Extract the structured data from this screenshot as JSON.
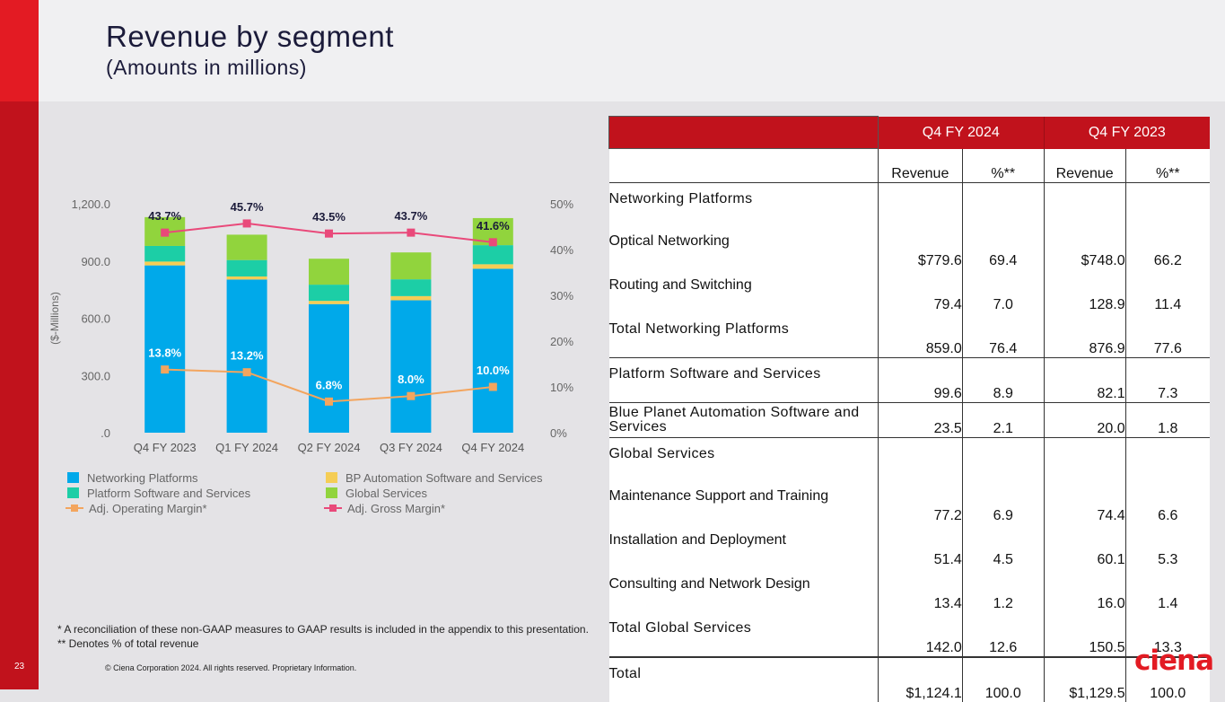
{
  "page": {
    "title": "Revenue by segment",
    "subtitle": "(Amounts in millions)",
    "page_number": "23",
    "footnote_1": "* A reconciliation of these non-GAAP measures to GAAP results is included in the appendix to this presentation.",
    "footnote_2": "** Denotes % of total revenue",
    "copyright": "© Ciena Corporation 2024. All rights reserved. Proprietary Information.",
    "logo_text": "ciena",
    "accent_color": "#e31b23",
    "sidebar_color": "#c1121c"
  },
  "chart_data": {
    "type": "bar",
    "stacked": true,
    "categories": [
      "Q4 FY 2023",
      "Q1 FY 2024",
      "Q2 FY 2024",
      "Q3 FY 2024",
      "Q4 FY 2024"
    ],
    "ylabel": "($-Millions)",
    "ylim": [
      0,
      1200
    ],
    "yticks": [
      ".0",
      "300.0",
      "600.0",
      "900.0",
      "1,200.0"
    ],
    "y2lim": [
      0,
      50
    ],
    "y2ticks": [
      "0%",
      "10%",
      "20%",
      "30%",
      "40%",
      "50%"
    ],
    "series": [
      {
        "name": "Networking Platforms",
        "color": "#00a9ea",
        "values": [
          877,
          803,
          674,
          694,
          859
        ]
      },
      {
        "name": "BP Automation Software and Services",
        "color": "#f5cd55",
        "values": [
          20,
          16,
          17,
          22,
          24
        ]
      },
      {
        "name": "Platform Software and Services",
        "color": "#1ccea6",
        "values": [
          82,
          86,
          85,
          88,
          100
        ]
      },
      {
        "name": "Global Services",
        "color": "#91d43d",
        "values": [
          151,
          133,
          136,
          141,
          142
        ]
      }
    ],
    "lines": [
      {
        "name": "Adj. Gross Margin*",
        "color": "#e9497a",
        "values": [
          43.7,
          45.7,
          43.5,
          43.7,
          41.6
        ],
        "labels": [
          "43.7%",
          "45.7%",
          "43.5%",
          "43.7%",
          "41.6%"
        ]
      },
      {
        "name": "Adj. Operating Margin*",
        "color": "#f3a55e",
        "values": [
          13.8,
          13.2,
          6.8,
          8.0,
          10.0
        ],
        "labels": [
          "13.8%",
          "13.2%",
          "6.8%",
          "8.0%",
          "10.0%"
        ]
      }
    ],
    "legend": [
      "Networking Platforms",
      "BP Automation Software and Services",
      "Platform Software and Services",
      "Global Services",
      "Adj. Operating Margin*",
      "Adj. Gross Margin*"
    ],
    "legend_position": "bottom"
  },
  "table": {
    "col_groups": [
      "Q4 FY 2024",
      "Q4 FY 2023"
    ],
    "col_headers": [
      "Revenue",
      "%**",
      "Revenue",
      "%**"
    ],
    "rows": [
      {
        "label": "Networking Platforms",
        "values": [
          "",
          "",
          "",
          ""
        ]
      },
      {
        "label": "Optical Networking",
        "values": [
          "$779.6",
          "69.4",
          "$748.0",
          "66.2"
        ]
      },
      {
        "label": "Routing and Switching",
        "values": [
          "79.4",
          "7.0",
          "128.9",
          "11.4"
        ]
      },
      {
        "label": "Total Networking Platforms",
        "values": [
          "859.0",
          "76.4",
          "876.9",
          "77.6"
        ]
      },
      {
        "label": "Platform Software and Services",
        "values": [
          "99.6",
          "8.9",
          "82.1",
          "7.3"
        ]
      },
      {
        "label": "Blue Planet Automation Software and Services",
        "values": [
          "23.5",
          "2.1",
          "20.0",
          "1.8"
        ]
      },
      {
        "label": "Global Services",
        "values": [
          "",
          "",
          "",
          ""
        ]
      },
      {
        "label": "Maintenance Support and Training",
        "values": [
          "77.2",
          "6.9",
          "74.4",
          "6.6"
        ]
      },
      {
        "label": "Installation and Deployment",
        "values": [
          "51.4",
          "4.5",
          "60.1",
          "5.3"
        ]
      },
      {
        "label": "Consulting and Network Design",
        "values": [
          "13.4",
          "1.2",
          "16.0",
          "1.4"
        ]
      },
      {
        "label": "Total Global Services",
        "values": [
          "142.0",
          "12.6",
          "150.5",
          "13.3"
        ]
      },
      {
        "label": "Total",
        "values": [
          "$1,124.1",
          "100.0",
          "$1,129.5",
          "100.0"
        ]
      }
    ]
  }
}
